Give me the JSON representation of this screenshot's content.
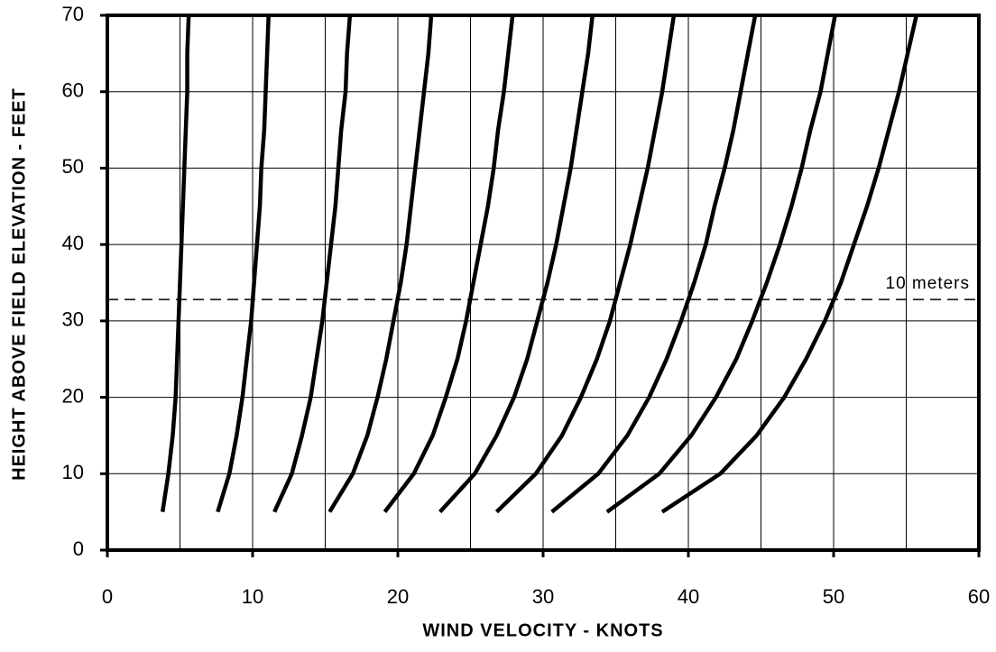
{
  "chart_data": {
    "type": "line",
    "xlabel": "WIND VELOCITY - KNOTS",
    "ylabel": "HEIGHT ABOVE FIELD ELEVATION - FEET",
    "xlim": [
      0,
      60
    ],
    "xticks": [
      0,
      10,
      20,
      30,
      40,
      50,
      60
    ],
    "xminor": [
      5,
      15,
      25,
      35,
      45,
      55
    ],
    "ylim": [
      0,
      70
    ],
    "yticks": [
      0,
      10,
      20,
      30,
      40,
      50,
      60,
      70
    ],
    "grid": true,
    "reference_line": {
      "value": 32.8,
      "label": "10 meters"
    },
    "y": [
      5,
      10,
      15,
      20,
      25,
      30,
      35,
      40,
      45,
      50,
      55,
      60,
      65,
      70
    ],
    "series": [
      {
        "color": "#000000",
        "values": [
          3.8,
          4.2,
          4.5,
          4.7,
          4.8,
          4.9,
          5.0,
          5.1,
          5.2,
          5.3,
          5.4,
          5.5,
          5.5,
          5.6
        ]
      },
      {
        "color": "#000000",
        "values": [
          7.6,
          8.4,
          8.9,
          9.3,
          9.6,
          9.9,
          10.1,
          10.3,
          10.5,
          10.6,
          10.8,
          10.9,
          11.0,
          11.1
        ]
      },
      {
        "color": "#000000",
        "values": [
          11.5,
          12.7,
          13.4,
          14.0,
          14.4,
          14.8,
          15.1,
          15.4,
          15.7,
          15.9,
          16.1,
          16.4,
          16.5,
          16.7
        ]
      },
      {
        "color": "#000000",
        "values": [
          15.3,
          16.9,
          17.9,
          18.6,
          19.2,
          19.7,
          20.2,
          20.6,
          20.9,
          21.2,
          21.5,
          21.8,
          22.1,
          22.3
        ]
      },
      {
        "color": "#000000",
        "values": [
          19.1,
          21.1,
          22.4,
          23.3,
          24.1,
          24.7,
          25.2,
          25.7,
          26.2,
          26.6,
          26.9,
          27.3,
          27.6,
          27.9
        ]
      },
      {
        "color": "#000000",
        "values": [
          22.9,
          25.3,
          26.8,
          28.0,
          28.9,
          29.6,
          30.3,
          30.9,
          31.4,
          31.9,
          32.3,
          32.7,
          33.1,
          33.4
        ]
      },
      {
        "color": "#000000",
        "values": [
          26.8,
          29.5,
          31.3,
          32.6,
          33.7,
          34.6,
          35.3,
          36.0,
          36.6,
          37.2,
          37.7,
          38.2,
          38.6,
          39.0
        ]
      },
      {
        "color": "#000000",
        "values": [
          30.6,
          33.8,
          35.8,
          37.3,
          38.5,
          39.5,
          40.4,
          41.2,
          41.8,
          42.5,
          43.1,
          43.6,
          44.1,
          44.6
        ]
      },
      {
        "color": "#000000",
        "values": [
          34.4,
          38.0,
          40.2,
          41.9,
          43.3,
          44.4,
          45.4,
          46.3,
          47.1,
          47.8,
          48.4,
          49.1,
          49.6,
          50.1
        ]
      },
      {
        "color": "#000000",
        "values": [
          38.2,
          42.2,
          44.7,
          46.6,
          48.1,
          49.4,
          50.5,
          51.4,
          52.3,
          53.1,
          53.8,
          54.5,
          55.1,
          55.7
        ]
      }
    ]
  }
}
